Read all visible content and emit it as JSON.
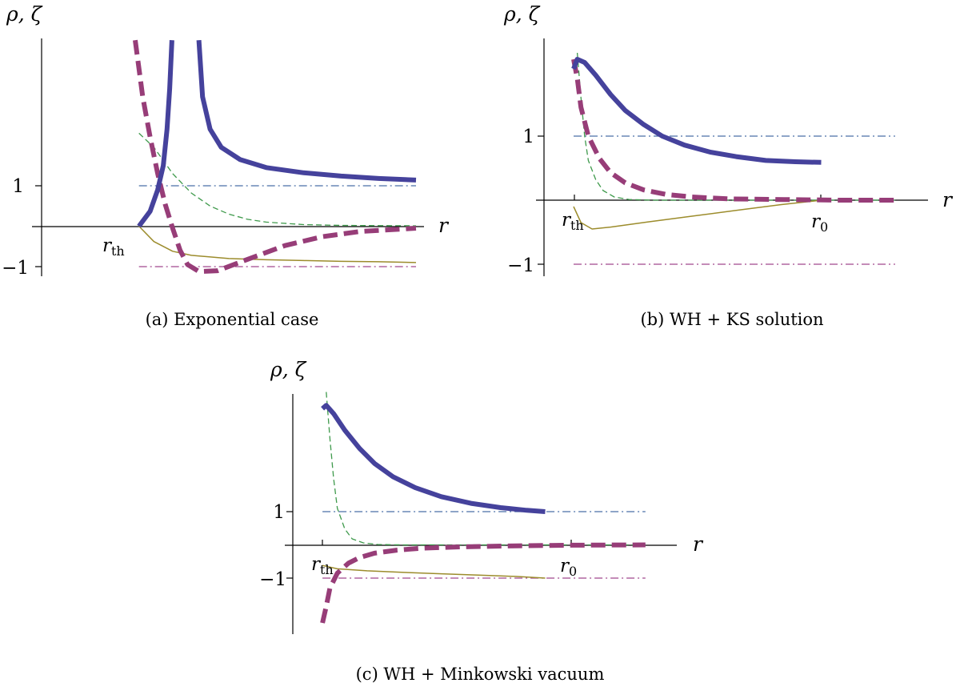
{
  "colors": {
    "blue_thick": "#45429c",
    "magenta_thick": "#973d78",
    "green_thin": "#3f9a4c",
    "olive_thin": "#9c8c2c",
    "blue_dashdot": "#4a6fa8",
    "magenta_dashdot": "#a0488e"
  },
  "chart_data": [
    {
      "type": "line",
      "caption": "(a) Exponential case",
      "ylabel": "ρ, ζ",
      "xlabel": "r",
      "xticks": [
        "r_th"
      ],
      "yticks": [
        "1",
        "−1"
      ],
      "xlim": [
        0,
        1
      ],
      "ylim": [
        -1.15,
        4.7
      ],
      "series": [
        {
          "style": "thick-solid-blue",
          "segments": [
            [
              [
                0.26,
                0
              ],
              [
                0.29,
                0.37
              ],
              [
                0.31,
                0.9
              ],
              [
                0.325,
                1.5
              ],
              [
                0.335,
                2.4
              ],
              [
                0.342,
                3.4
              ],
              [
                0.348,
                4.6
              ]
            ],
            [
              [
                0.42,
                4.6
              ],
              [
                0.43,
                3.2
              ],
              [
                0.45,
                2.4
              ],
              [
                0.48,
                1.95
              ],
              [
                0.53,
                1.65
              ],
              [
                0.6,
                1.45
              ],
              [
                0.7,
                1.32
              ],
              [
                0.8,
                1.24
              ],
              [
                0.9,
                1.18
              ],
              [
                1.0,
                1.14
              ]
            ]
          ]
        },
        {
          "style": "thick-dashed-magenta",
          "segments": [
            [
              [
                0.25,
                4.6
              ],
              [
                0.27,
                3.2
              ],
              [
                0.29,
                2.2
              ],
              [
                0.31,
                1.3
              ],
              [
                0.33,
                0.55
              ],
              [
                0.35,
                -0.05
              ],
              [
                0.37,
                -0.6
              ],
              [
                0.39,
                -0.95
              ],
              [
                0.42,
                -1.12
              ],
              [
                0.47,
                -1.1
              ],
              [
                0.55,
                -0.82
              ],
              [
                0.65,
                -0.48
              ],
              [
                0.75,
                -0.26
              ],
              [
                0.85,
                -0.13
              ],
              [
                1.0,
                -0.05
              ]
            ]
          ]
        },
        {
          "style": "thin-dashed-green",
          "segments": [
            [
              [
                0.26,
                2.3
              ],
              [
                0.3,
                1.95
              ],
              [
                0.35,
                1.3
              ],
              [
                0.4,
                0.82
              ],
              [
                0.45,
                0.5
              ],
              [
                0.5,
                0.3
              ],
              [
                0.55,
                0.17
              ],
              [
                0.6,
                0.1
              ],
              [
                0.7,
                0.04
              ],
              [
                0.8,
                0.02
              ],
              [
                1.0,
                0.01
              ]
            ]
          ]
        },
        {
          "style": "thin-solid-olive",
          "segments": [
            [
              [
                0.26,
                0
              ],
              [
                0.3,
                -0.38
              ],
              [
                0.35,
                -0.62
              ],
              [
                0.4,
                -0.72
              ],
              [
                0.5,
                -0.8
              ],
              [
                0.6,
                -0.83
              ],
              [
                0.7,
                -0.85
              ],
              [
                0.8,
                -0.87
              ],
              [
                0.9,
                -0.88
              ],
              [
                1.0,
                -0.9
              ]
            ]
          ]
        },
        {
          "style": "dashdot-blue",
          "segments": [
            [
              [
                0.26,
                1
              ],
              [
                1.0,
                1
              ]
            ]
          ]
        },
        {
          "style": "dashdot-magenta",
          "segments": [
            [
              [
                0.26,
                -1
              ],
              [
                1.0,
                -1
              ]
            ]
          ]
        }
      ]
    },
    {
      "type": "line",
      "caption": "(b) WH + KS solution",
      "ylabel": "ρ, ζ",
      "xlabel": "r",
      "xticks": [
        "r_th",
        "r_0"
      ],
      "yticks": [
        "1",
        "−1"
      ],
      "xlim": [
        0,
        1
      ],
      "ylim": [
        -1.2,
        2.35
      ],
      "series": [
        {
          "style": "thick-solid-blue",
          "segments": [
            [
              [
                0.08,
                2.05
              ],
              [
                0.09,
                2.2
              ],
              [
                0.11,
                2.15
              ],
              [
                0.14,
                1.95
              ],
              [
                0.18,
                1.65
              ],
              [
                0.22,
                1.4
              ],
              [
                0.27,
                1.18
              ],
              [
                0.32,
                1.0
              ],
              [
                0.38,
                0.86
              ],
              [
                0.45,
                0.75
              ],
              [
                0.52,
                0.68
              ],
              [
                0.6,
                0.62
              ],
              [
                0.68,
                0.6
              ],
              [
                0.75,
                0.59
              ]
            ]
          ]
        },
        {
          "style": "thick-dashed-magenta",
          "segments": [
            [
              [
                0.08,
                2.2
              ],
              [
                0.09,
                1.9
              ],
              [
                0.1,
                1.45
              ],
              [
                0.12,
                1.0
              ],
              [
                0.15,
                0.65
              ],
              [
                0.18,
                0.43
              ],
              [
                0.22,
                0.27
              ],
              [
                0.27,
                0.16
              ],
              [
                0.33,
                0.09
              ],
              [
                0.4,
                0.05
              ],
              [
                0.5,
                0.02
              ],
              [
                0.65,
                0.01
              ],
              [
                0.8,
                0.0
              ],
              [
                0.95,
                0.0
              ]
            ]
          ]
        },
        {
          "style": "thin-dashed-green",
          "segments": [
            [
              [
                0.09,
                2.3
              ],
              [
                0.1,
                1.6
              ],
              [
                0.11,
                1.0
              ],
              [
                0.12,
                0.62
              ],
              [
                0.14,
                0.32
              ],
              [
                0.16,
                0.15
              ],
              [
                0.19,
                0.05
              ],
              [
                0.23,
                0.01
              ],
              [
                0.3,
                0.0
              ],
              [
                0.95,
                0.0
              ]
            ]
          ]
        },
        {
          "style": "thin-solid-olive",
          "segments": [
            [
              [
                0.08,
                -0.1
              ],
              [
                0.1,
                -0.35
              ],
              [
                0.13,
                -0.45
              ],
              [
                0.18,
                -0.42
              ],
              [
                0.28,
                -0.34
              ],
              [
                0.4,
                -0.25
              ],
              [
                0.52,
                -0.16
              ],
              [
                0.64,
                -0.07
              ],
              [
                0.72,
                -0.02
              ],
              [
                0.75,
                0.0
              ]
            ]
          ]
        },
        {
          "style": "dashdot-blue",
          "segments": [
            [
              [
                0.08,
                1
              ],
              [
                0.95,
                1
              ]
            ]
          ]
        },
        {
          "style": "dashdot-magenta",
          "segments": [
            [
              [
                0.08,
                -1
              ],
              [
                0.95,
                -1
              ]
            ]
          ]
        }
      ]
    },
    {
      "type": "line",
      "caption": "(c) WH + Minkowski vacuum",
      "ylabel": "ρ, ζ",
      "xlabel": "r",
      "xticks": [
        "r_th",
        "r_0"
      ],
      "yticks": [
        "1",
        "−1"
      ],
      "xlim": [
        0,
        1
      ],
      "ylim": [
        -2.8,
        4.7
      ],
      "series": [
        {
          "style": "thick-solid-blue",
          "segments": [
            [
              [
                0.08,
                4.1
              ],
              [
                0.09,
                4.2
              ],
              [
                0.11,
                3.95
              ],
              [
                0.14,
                3.45
              ],
              [
                0.18,
                2.9
              ],
              [
                0.22,
                2.45
              ],
              [
                0.27,
                2.05
              ],
              [
                0.33,
                1.72
              ],
              [
                0.4,
                1.45
              ],
              [
                0.48,
                1.25
              ],
              [
                0.56,
                1.12
              ],
              [
                0.63,
                1.04
              ],
              [
                0.68,
                1.0
              ]
            ]
          ]
        },
        {
          "style": "thick-dashed-magenta",
          "segments": [
            [
              [
                0.08,
                -2.35
              ],
              [
                0.09,
                -1.85
              ],
              [
                0.1,
                -1.3
              ],
              [
                0.12,
                -0.85
              ],
              [
                0.15,
                -0.55
              ],
              [
                0.18,
                -0.38
              ],
              [
                0.22,
                -0.25
              ],
              [
                0.28,
                -0.16
              ],
              [
                0.35,
                -0.1
              ],
              [
                0.45,
                -0.06
              ],
              [
                0.6,
                -0.03
              ],
              [
                0.75,
                -0.01
              ],
              [
                0.95,
                0.0
              ]
            ]
          ]
        },
        {
          "style": "thin-dashed-green",
          "segments": [
            [
              [
                0.09,
                4.6
              ],
              [
                0.1,
                3.2
              ],
              [
                0.11,
                2.0
              ],
              [
                0.12,
                1.1
              ],
              [
                0.14,
                0.48
              ],
              [
                0.16,
                0.18
              ],
              [
                0.19,
                0.06
              ],
              [
                0.23,
                0.01
              ],
              [
                0.3,
                0.0
              ],
              [
                0.95,
                0.0
              ]
            ]
          ]
        },
        {
          "style": "thin-solid-olive",
          "segments": [
            [
              [
                0.08,
                -0.62
              ],
              [
                0.12,
                -0.72
              ],
              [
                0.2,
                -0.78
              ],
              [
                0.3,
                -0.83
              ],
              [
                0.4,
                -0.87
              ],
              [
                0.5,
                -0.91
              ],
              [
                0.6,
                -0.95
              ],
              [
                0.68,
                -1.0
              ]
            ]
          ]
        },
        {
          "style": "dashdot-blue",
          "segments": [
            [
              [
                0.08,
                1
              ],
              [
                0.95,
                1
              ]
            ]
          ]
        },
        {
          "style": "dashdot-magenta",
          "segments": [
            [
              [
                0.08,
                -1
              ],
              [
                0.95,
                -1
              ]
            ]
          ]
        }
      ]
    }
  ]
}
